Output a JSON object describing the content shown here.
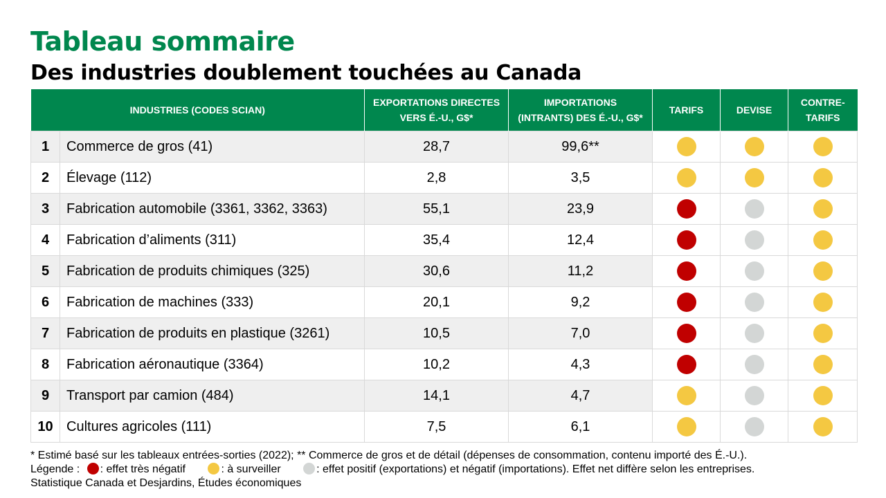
{
  "title": "Tableau sommaire",
  "subtitle": "Des industries doublement touchées au Canada",
  "colors": {
    "red": "#c00000",
    "yellow": "#f4c842",
    "grey": "#d3d6d5",
    "green": "#00874e"
  },
  "table": {
    "headers": {
      "industries": "INDUSTRIES (CODES SCIAN)",
      "exports_line1": "EXPORTATIONS DIRECTES",
      "exports_line2": "VERS É.-U., G$*",
      "imports_line1": "IMPORTATIONS",
      "imports_line2": "(INTRANTS) DES É.-U., G$*",
      "tarifs": "TARIFS",
      "devise": "DEVISE",
      "contre_line1": "CONTRE-",
      "contre_line2": "TARIFS"
    },
    "rows": [
      {
        "rank": "1",
        "name": "Commerce de gros (41)",
        "exports": "28,7",
        "imports": "99,6**",
        "tarifs": "yellow",
        "devise": "yellow",
        "contre": "yellow"
      },
      {
        "rank": "2",
        "name": "Élevage (112)",
        "exports": "2,8",
        "imports": "3,5",
        "tarifs": "yellow",
        "devise": "yellow",
        "contre": "yellow"
      },
      {
        "rank": "3",
        "name": "Fabrication automobile (3361, 3362, 3363)",
        "exports": "55,1",
        "imports": "23,9",
        "tarifs": "red",
        "devise": "grey",
        "contre": "yellow"
      },
      {
        "rank": "4",
        "name": "Fabrication d’aliments (311)",
        "exports": "35,4",
        "imports": "12,4",
        "tarifs": "red",
        "devise": "grey",
        "contre": "yellow"
      },
      {
        "rank": "5",
        "name": "Fabrication de produits chimiques (325)",
        "exports": "30,6",
        "imports": "11,2",
        "tarifs": "red",
        "devise": "grey",
        "contre": "yellow"
      },
      {
        "rank": "6",
        "name": "Fabrication de machines (333)",
        "exports": "20,1",
        "imports": "9,2",
        "tarifs": "red",
        "devise": "grey",
        "contre": "yellow"
      },
      {
        "rank": "7",
        "name": "Fabrication de produits en plastique (3261)",
        "exports": "10,5",
        "imports": "7,0",
        "tarifs": "red",
        "devise": "grey",
        "contre": "yellow"
      },
      {
        "rank": "8",
        "name": "Fabrication aéronautique (3364)",
        "exports": "10,2",
        "imports": "4,3",
        "tarifs": "red",
        "devise": "grey",
        "contre": "yellow"
      },
      {
        "rank": "9",
        "name": "Transport par camion (484)",
        "exports": "14,1",
        "imports": "4,7",
        "tarifs": "yellow",
        "devise": "grey",
        "contre": "yellow"
      },
      {
        "rank": "10",
        "name": "Cultures agricoles (111)",
        "exports": "7,5",
        "imports": "6,1",
        "tarifs": "yellow",
        "devise": "grey",
        "contre": "yellow"
      }
    ]
  },
  "footnote": {
    "note": "* Estimé basé sur les tableaux entrées-sorties (2022); ** Commerce de gros et de détail (dépenses de consommation, contenu importé des É.-U.).",
    "legend_label": "Légende :",
    "legend_red": ": effet très négatif",
    "legend_yellow": ": à surveiller",
    "legend_grey": ": effet positif (exportations) et négatif (importations). Effet net diffère selon les entreprises.",
    "source": "Statistique Canada et Desjardins, Études économiques"
  }
}
